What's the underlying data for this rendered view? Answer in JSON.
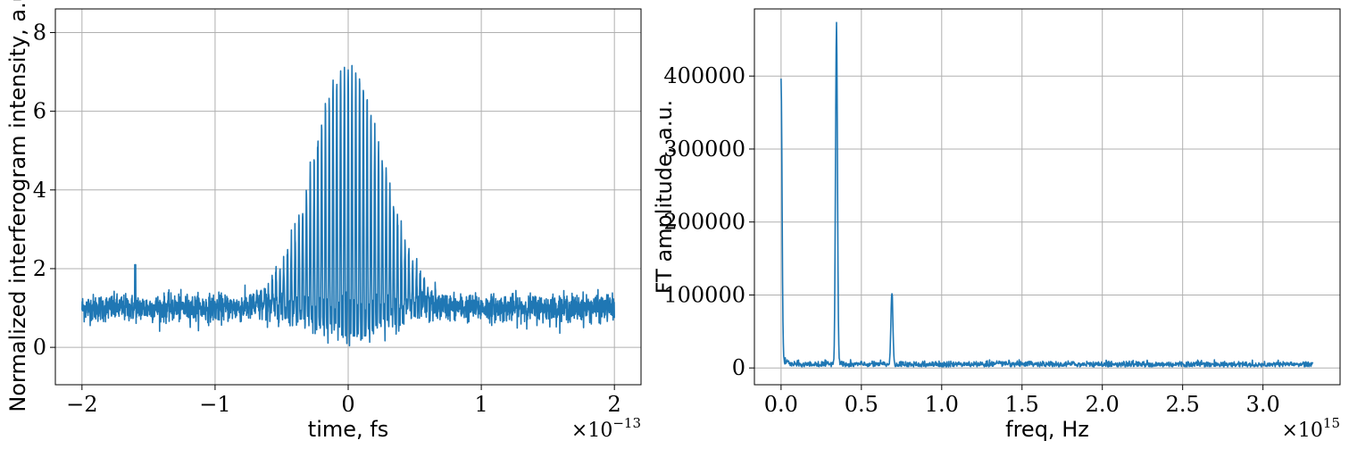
{
  "chart_data": [
    {
      "type": "line",
      "title": "",
      "xlabel": "time, fs",
      "ylabel": "Normalized interferogram intensity, a.u.",
      "x_offset_text": "×10",
      "x_offset_exp": "−13",
      "xlim": [
        -2.2,
        2.2
      ],
      "ylim": [
        -0.95,
        8.6
      ],
      "x_scale": 1e-13,
      "xticks": [
        -2,
        -1,
        0,
        1,
        2
      ],
      "xtick_labels": [
        "−2",
        "−1",
        "0",
        "1",
        "2"
      ],
      "yticks": [
        0,
        2,
        4,
        6,
        8
      ],
      "ytick_labels": [
        "0",
        "2",
        "4",
        "6",
        "8"
      ],
      "grid": true,
      "color": "#1f77b4",
      "series": [
        {
          "description": "Interferometric autocorrelation: oscillating fringes around a baseline of ~1 (noise band ~0.5–1.5) from x=-2 to 2, with a Gaussian envelope centered at 0 peaking at ~8.15 and minima reaching ~-0.4; fringe period ~0.029 (×1e-13 s); isolated noise spike ~2.1 at x≈-1.6",
          "x_range": [
            -2.0,
            2.0
          ],
          "baseline": 1.0,
          "peak_value": 8.15,
          "min_value": -0.45,
          "spike": {
            "x": -1.6,
            "y": 2.1
          }
        }
      ]
    },
    {
      "type": "line",
      "title": "",
      "xlabel": "freq, Hz",
      "ylabel": "FT amplitude, a.u.",
      "x_offset_text": "×10",
      "x_offset_exp": "15",
      "xlim": [
        -0.166,
        3.48
      ],
      "ylim": [
        -23000,
        492000
      ],
      "x_scale": 1000000000000000.0,
      "xticks": [
        0.0,
        0.5,
        1.0,
        1.5,
        2.0,
        2.5,
        3.0
      ],
      "xtick_labels": [
        "0.0",
        "0.5",
        "1.0",
        "1.5",
        "2.0",
        "2.5",
        "3.0"
      ],
      "yticks": [
        0,
        100000,
        200000,
        300000,
        400000
      ],
      "ytick_labels": [
        "0",
        "100000",
        "200000",
        "300000",
        "400000"
      ],
      "grid": true,
      "color": "#1f77b4",
      "series": [
        {
          "description": "Fourier transform amplitude: noise floor ~5000 from 0 to 3.3e15 Hz with peaks",
          "x_range": [
            0.0,
            3.31
          ],
          "noise_floor": 5000,
          "peaks": [
            {
              "x": 0.0,
              "y": 395000
            },
            {
              "x": 0.345,
              "y": 470000
            },
            {
              "x": 0.69,
              "y": 104000
            }
          ]
        }
      ]
    }
  ]
}
